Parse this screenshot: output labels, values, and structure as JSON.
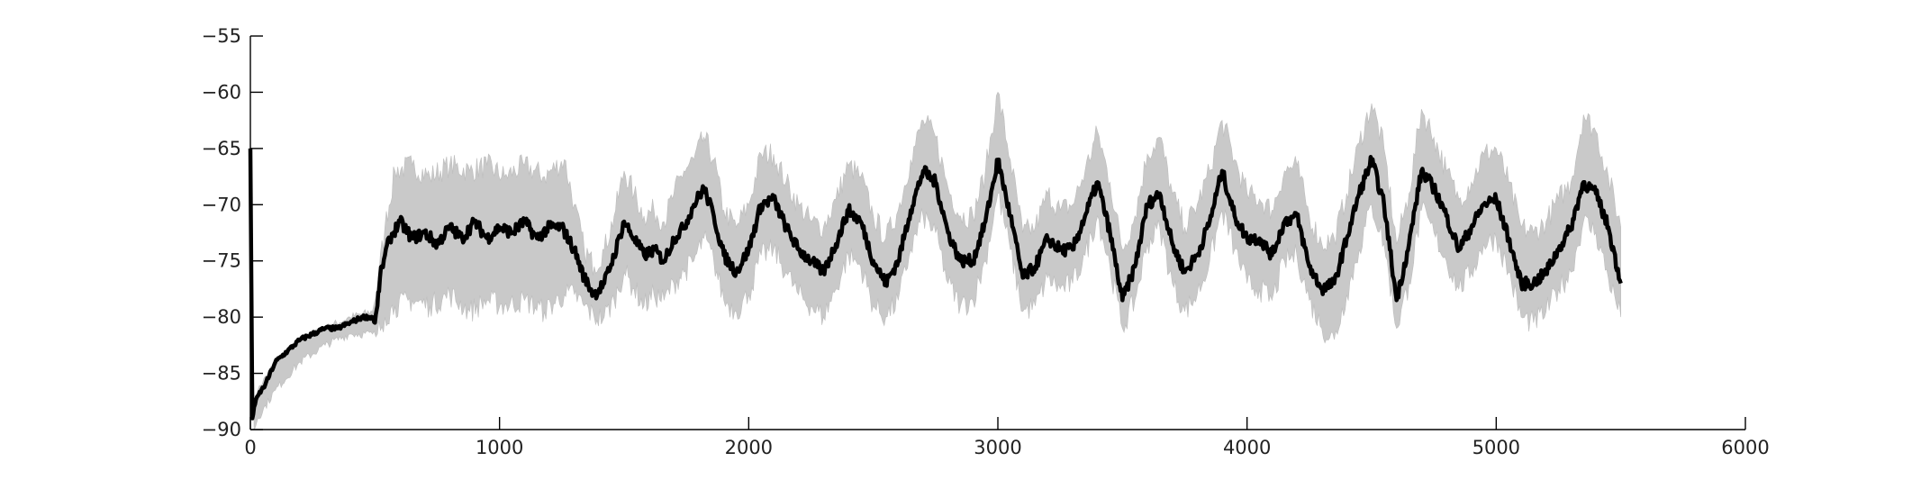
{
  "chart_data": {
    "type": "line",
    "title": "",
    "xlabel": "",
    "ylabel": "",
    "xlim": [
      0,
      6000
    ],
    "ylim": [
      -90,
      -55
    ],
    "grid": false,
    "legend": "none",
    "x_ticks": [
      "0",
      "1000",
      "2000",
      "3000",
      "4000",
      "5000",
      "6000"
    ],
    "y_ticks": [
      "−55",
      "−60",
      "−65",
      "−70",
      "−75",
      "−80",
      "−85",
      "−90"
    ],
    "x_tick_values": [
      0,
      1000,
      2000,
      3000,
      4000,
      5000,
      6000
    ],
    "y_tick_values": [
      -55,
      -60,
      -65,
      -70,
      -75,
      -80,
      -85,
      -90
    ],
    "colors": {
      "mean": "#000000",
      "band": "#c9c9c9",
      "axis": "#000000"
    },
    "series": [
      {
        "role": "mean",
        "x": [
          0,
          8,
          15,
          30,
          60,
          100,
          150,
          200,
          250,
          300,
          350,
          400,
          450,
          490,
          500,
          510,
          520,
          540,
          560,
          600,
          650,
          700,
          750,
          800,
          850,
          900,
          950,
          1000,
          1050,
          1100,
          1150,
          1200,
          1250,
          1300,
          1340,
          1380,
          1420,
          1460,
          1500,
          1540,
          1580,
          1620,
          1660,
          1700,
          1740,
          1780,
          1820,
          1860,
          1900,
          1950,
          2000,
          2050,
          2100,
          2150,
          2200,
          2250,
          2300,
          2350,
          2400,
          2450,
          2500,
          2550,
          2600,
          2650,
          2700,
          2750,
          2800,
          2850,
          2900,
          2950,
          3000,
          3050,
          3100,
          3150,
          3200,
          3250,
          3300,
          3350,
          3400,
          3450,
          3500,
          3550,
          3600,
          3650,
          3700,
          3750,
          3800,
          3850,
          3900,
          3950,
          4000,
          4050,
          4100,
          4150,
          4200,
          4250,
          4300,
          4350,
          4400,
          4450,
          4500,
          4550,
          4600,
          4650,
          4700,
          4750,
          4800,
          4850,
          4900,
          4950,
          5000,
          5050,
          5100,
          5150,
          5200,
          5250,
          5300,
          5350,
          5400,
          5450,
          5500
        ],
        "values": [
          -65,
          -89,
          -88,
          -87,
          -86,
          -84,
          -83,
          -82,
          -81.5,
          -81,
          -81,
          -80.5,
          -80,
          -80,
          -80.5,
          -79,
          -76.5,
          -74.5,
          -73,
          -71.5,
          -73,
          -72.5,
          -73.5,
          -72,
          -73,
          -71.5,
          -73,
          -72,
          -72.5,
          -71.5,
          -73,
          -72,
          -72,
          -74,
          -76.5,
          -78,
          -77,
          -74.5,
          -71.5,
          -73,
          -74.5,
          -74,
          -75,
          -73,
          -72,
          -70,
          -68.5,
          -71,
          -74.5,
          -76,
          -74,
          -70,
          -69.5,
          -72,
          -74,
          -75,
          -76,
          -73.5,
          -70.5,
          -71.5,
          -75,
          -77,
          -75,
          -70.5,
          -67,
          -68,
          -72.5,
          -75,
          -75,
          -71.5,
          -66,
          -71,
          -76.5,
          -75.5,
          -73,
          -74,
          -74,
          -71,
          -68,
          -72.5,
          -78.5,
          -75.5,
          -70,
          -69,
          -73.5,
          -76,
          -74.5,
          -71.5,
          -67,
          -71,
          -73,
          -73,
          -74.5,
          -71.5,
          -71,
          -75.5,
          -77.5,
          -77,
          -73,
          -69,
          -66,
          -70,
          -78.5,
          -73.5,
          -67,
          -68.5,
          -71,
          -74,
          -72,
          -70,
          -69.5,
          -73,
          -77,
          -77,
          -76,
          -74,
          -72,
          -68,
          -69,
          -72,
          -77
        ]
      },
      {
        "role": "band-upper",
        "x": [
          0,
          15,
          30,
          100,
          200,
          300,
          400,
          490,
          510,
          540,
          580,
          650,
          720,
          800,
          880,
          950,
          1020,
          1100,
          1180,
          1260,
          1300,
          1340,
          1380,
          1420,
          1460,
          1500,
          1540,
          1580,
          1620,
          1660,
          1700,
          1740,
          1780,
          1820,
          1860,
          1900,
          1950,
          2000,
          2050,
          2100,
          2150,
          2200,
          2250,
          2300,
          2350,
          2400,
          2450,
          2500,
          2550,
          2600,
          2650,
          2700,
          2750,
          2800,
          2850,
          2900,
          2950,
          3000,
          3050,
          3100,
          3150,
          3200,
          3250,
          3300,
          3350,
          3400,
          3450,
          3500,
          3550,
          3600,
          3650,
          3700,
          3750,
          3800,
          3850,
          3900,
          3950,
          4000,
          4050,
          4100,
          4150,
          4200,
          4250,
          4300,
          4350,
          4400,
          4450,
          4500,
          4550,
          4600,
          4650,
          4700,
          4750,
          4800,
          4850,
          4900,
          4950,
          5000,
          5050,
          5100,
          5150,
          5200,
          5250,
          5300,
          5350,
          5400,
          5450,
          5500
        ],
        "values": [
          -65,
          -87.5,
          -86.5,
          -84,
          -82,
          -81,
          -80,
          -79.5,
          -77,
          -72,
          -67,
          -66.5,
          -67.5,
          -66.5,
          -67,
          -66.5,
          -67.5,
          -66.5,
          -67.5,
          -66,
          -70,
          -74,
          -75.5,
          -74,
          -71,
          -67,
          -69,
          -71,
          -70.5,
          -71.5,
          -69,
          -67,
          -66,
          -64,
          -66,
          -70.5,
          -72,
          -70,
          -65.5,
          -65.5,
          -68,
          -70,
          -71.5,
          -72,
          -69.5,
          -66.5,
          -67.5,
          -71,
          -73,
          -70.5,
          -66,
          -62.5,
          -64,
          -68.5,
          -71,
          -71,
          -67,
          -60,
          -66,
          -72.5,
          -72,
          -69,
          -70.5,
          -70,
          -67,
          -63.5,
          -68,
          -74,
          -71,
          -65.5,
          -64,
          -69,
          -72,
          -70,
          -67,
          -62.5,
          -66,
          -69,
          -69.5,
          -70.5,
          -67,
          -66.5,
          -71,
          -73.5,
          -73,
          -69,
          -64.5,
          -61,
          -65,
          -73.5,
          -69,
          -61.5,
          -64,
          -67,
          -69.5,
          -68,
          -65.5,
          -65,
          -68,
          -72,
          -72.5,
          -71.5,
          -69.5,
          -68,
          -62,
          -63.5,
          -67.5,
          -72
        ]
      },
      {
        "role": "band-lower",
        "x": [
          0,
          15,
          30,
          100,
          200,
          300,
          400,
          490,
          510,
          540,
          580,
          650,
          720,
          800,
          880,
          950,
          1020,
          1100,
          1180,
          1260,
          1300,
          1340,
          1380,
          1420,
          1460,
          1500,
          1540,
          1580,
          1620,
          1660,
          1700,
          1740,
          1780,
          1820,
          1860,
          1900,
          1950,
          2000,
          2050,
          2100,
          2150,
          2200,
          2250,
          2300,
          2350,
          2400,
          2450,
          2500,
          2550,
          2600,
          2650,
          2700,
          2750,
          2800,
          2850,
          2900,
          2950,
          3000,
          3050,
          3100,
          3150,
          3200,
          3250,
          3300,
          3350,
          3400,
          3450,
          3500,
          3550,
          3600,
          3650,
          3700,
          3750,
          3800,
          3850,
          3900,
          3950,
          4000,
          4050,
          4100,
          4150,
          4200,
          4250,
          4300,
          4350,
          4400,
          4450,
          4500,
          4550,
          4600,
          4650,
          4700,
          4750,
          4800,
          4850,
          4900,
          4950,
          5000,
          5050,
          5100,
          5150,
          5200,
          5250,
          5300,
          5350,
          5400,
          5450,
          5500
        ],
        "values": [
          -65,
          -90,
          -89,
          -86.5,
          -84,
          -82.5,
          -81.5,
          -81.5,
          -81.5,
          -80,
          -79,
          -78.5,
          -79,
          -78,
          -79.5,
          -78.5,
          -79,
          -78.5,
          -79.5,
          -78,
          -78,
          -79,
          -80,
          -80,
          -78.5,
          -76,
          -77.5,
          -79,
          -78,
          -78.5,
          -77,
          -76,
          -75,
          -73,
          -75,
          -78.5,
          -79.5,
          -78,
          -74.5,
          -74,
          -76,
          -78,
          -79,
          -80,
          -77.5,
          -74.5,
          -75.5,
          -79,
          -80,
          -78.5,
          -74,
          -71,
          -72.5,
          -77,
          -79,
          -78.5,
          -75,
          -69,
          -74,
          -79.5,
          -79,
          -76.5,
          -77.5,
          -77,
          -74.5,
          -71,
          -75.5,
          -81,
          -78.5,
          -73.5,
          -72,
          -77,
          -79.5,
          -78,
          -75,
          -70.5,
          -74,
          -77,
          -77.5,
          -78.5,
          -75,
          -74.5,
          -78.5,
          -81,
          -82,
          -78,
          -74,
          -70,
          -73.5,
          -81,
          -77,
          -70.5,
          -72.5,
          -75,
          -77.5,
          -76,
          -73.5,
          -73,
          -76,
          -80,
          -80.5,
          -79.5,
          -77.5,
          -76,
          -71.5,
          -72.5,
          -76.5,
          -80
        ]
      }
    ]
  }
}
